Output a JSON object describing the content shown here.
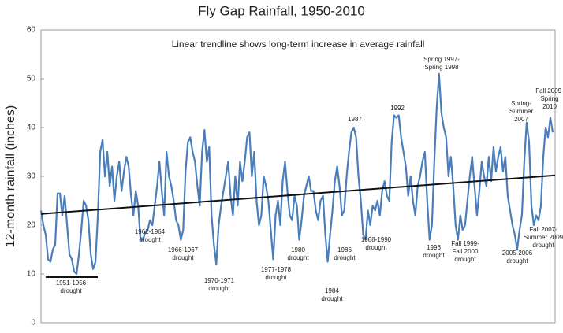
{
  "chart_data": {
    "type": "line",
    "title": "Fly Gap Rainfall, 1950-2010",
    "ylabel": "12-month rainfall (inches)",
    "ylim": [
      0,
      60
    ],
    "yticks": [
      0,
      10,
      20,
      30,
      40,
      50,
      60
    ],
    "grid": false,
    "series": [
      {
        "name": null,
        "color": "#4a7ebb",
        "values": [
          23,
          20,
          18,
          13,
          12.5,
          15,
          16,
          26.5,
          26.5,
          22,
          26,
          20,
          14,
          13,
          10.5,
          10,
          14,
          19,
          25,
          24,
          21,
          14,
          11,
          12.5,
          22,
          35,
          37.5,
          30,
          35,
          28,
          32,
          25,
          30,
          33,
          27,
          31,
          34,
          32,
          26,
          22,
          27,
          24,
          17,
          17,
          18.5,
          19,
          21,
          20,
          24,
          28,
          33,
          27,
          22,
          35,
          30,
          28,
          25,
          21,
          20,
          17,
          19,
          31,
          37,
          38,
          35,
          33,
          28,
          24,
          35,
          39.5,
          33,
          36,
          22,
          16,
          12,
          20,
          24,
          27,
          30,
          33,
          26,
          22,
          30,
          24,
          33,
          29,
          33,
          38,
          39,
          30,
          35,
          25,
          20,
          22,
          30,
          28,
          25,
          19,
          13,
          22,
          25,
          20,
          29,
          33,
          27,
          22,
          21,
          26,
          24,
          17,
          21,
          26,
          28,
          30,
          27,
          27,
          23,
          21,
          25,
          26,
          18,
          12.5,
          18,
          23,
          29,
          32,
          28,
          22,
          23,
          30,
          35,
          39,
          40,
          38,
          30,
          25,
          18,
          17,
          23,
          20,
          24,
          23,
          25,
          22,
          27,
          29,
          26,
          25,
          37,
          42.5,
          42,
          42.5,
          38,
          35,
          32,
          26,
          30,
          25,
          22,
          28,
          30,
          33,
          35,
          25,
          17,
          20,
          33,
          44,
          51,
          43,
          40,
          38,
          30,
          34,
          28,
          20,
          17,
          22,
          19,
          20,
          25,
          30,
          34,
          28,
          22,
          27,
          33,
          30,
          28,
          34,
          29,
          36,
          31,
          34,
          36,
          31,
          34,
          26,
          23,
          20,
          18,
          15,
          19,
          22,
          33,
          41,
          37,
          24,
          20,
          22,
          21,
          24,
          34,
          40,
          38,
          42,
          39
        ]
      },
      {
        "name": null,
        "color": "#111111",
        "values": [
          22.3,
          30.2
        ]
      }
    ],
    "annotations": [
      [
        "Linear trendline shows long-term increase in average rainfall"
      ],
      [
        "1951-1956",
        "drought"
      ],
      [
        "1962-1964",
        "drought"
      ],
      [
        "1966-1967",
        "drought"
      ],
      [
        "1970-1971",
        "drought"
      ],
      [
        "1977-1978",
        "drought"
      ],
      [
        "1980",
        "drought"
      ],
      [
        "1984",
        "drought"
      ],
      [
        "1986",
        "drought"
      ],
      [
        "1988-1990",
        "drought"
      ],
      [
        "1987"
      ],
      [
        "1992"
      ],
      [
        "Spring 1997-",
        "Spring 1998"
      ],
      [
        "1996",
        "drought"
      ],
      [
        "Fall 1999-",
        "Fall 2000",
        "drought"
      ],
      [
        "Spring-",
        "Summer",
        "2007"
      ],
      [
        "2005-2006",
        "drought"
      ],
      [
        "Fall 2009-",
        "Spring",
        "2010"
      ],
      [
        "Fall 2007-",
        "Summer 2009",
        "drought"
      ]
    ]
  }
}
